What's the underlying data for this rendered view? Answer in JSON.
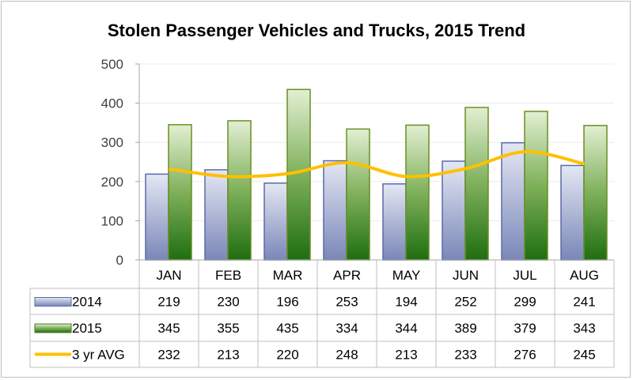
{
  "chart_data": {
    "type": "bar",
    "title": "Stolen Passenger Vehicles and Trucks, 2015 Trend",
    "categories": [
      "JAN",
      "FEB",
      "MAR",
      "APR",
      "MAY",
      "JUN",
      "JUL",
      "AUG"
    ],
    "series": [
      {
        "name": "2014",
        "kind": "bar",
        "values": [
          219,
          230,
          196,
          253,
          194,
          252,
          299,
          241
        ],
        "color": "#7f8cbd"
      },
      {
        "name": "2015",
        "kind": "bar",
        "values": [
          345,
          355,
          435,
          334,
          344,
          389,
          379,
          343
        ],
        "color": "#2e7d1a"
      },
      {
        "name": "3 yr AVG",
        "kind": "line",
        "smooth": true,
        "values": [
          232,
          213,
          220,
          248,
          213,
          233,
          276,
          245
        ],
        "color": "#ffc000"
      }
    ],
    "ylim": [
      0,
      500
    ],
    "yticks": [
      0,
      100,
      200,
      300,
      400,
      500
    ],
    "grid": true,
    "legend": "data-table",
    "data_table": true
  }
}
